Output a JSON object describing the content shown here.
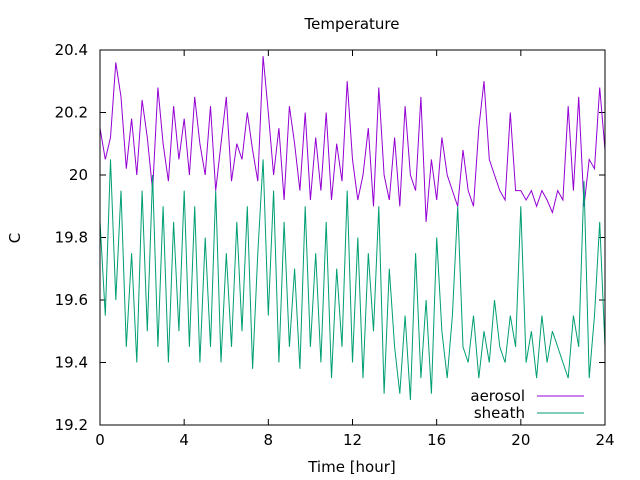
{
  "chart_data": {
    "type": "line",
    "title": "Temperature",
    "xlabel": "Time [hour]",
    "ylabel": "C",
    "xlim": [
      0,
      24
    ],
    "ylim": [
      19.2,
      20.4
    ],
    "x_ticks": [
      "0",
      "4",
      "8",
      "12",
      "16",
      "20",
      "24"
    ],
    "y_ticks": [
      "19.2",
      "19.4",
      "19.6",
      "19.8",
      "20",
      "20.2",
      "20.4"
    ],
    "grid": false,
    "legend_position": "bottom-right",
    "x": [
      0,
      0.25,
      0.5,
      0.75,
      1,
      1.25,
      1.5,
      1.75,
      2,
      2.25,
      2.5,
      2.75,
      3,
      3.25,
      3.5,
      3.75,
      4,
      4.25,
      4.5,
      4.75,
      5,
      5.25,
      5.5,
      5.75,
      6,
      6.25,
      6.5,
      6.75,
      7,
      7.25,
      7.5,
      7.75,
      8,
      8.25,
      8.5,
      8.75,
      9,
      9.25,
      9.5,
      9.75,
      10,
      10.25,
      10.5,
      10.75,
      11,
      11.25,
      11.5,
      11.75,
      12,
      12.25,
      12.5,
      12.75,
      13,
      13.25,
      13.5,
      13.75,
      14,
      14.25,
      14.5,
      14.75,
      15,
      15.25,
      15.5,
      15.75,
      16,
      16.25,
      16.5,
      16.75,
      17,
      17.25,
      17.5,
      17.75,
      18,
      18.25,
      18.5,
      18.75,
      19,
      19.25,
      19.5,
      19.75,
      20,
      20.25,
      20.5,
      20.75,
      21,
      21.25,
      21.5,
      21.75,
      22,
      22.25,
      22.5,
      22.75,
      23,
      23.25,
      23.5,
      23.75,
      24
    ],
    "series": [
      {
        "name": "aerosol",
        "color": "#9400d3",
        "values": [
          20.15,
          20.05,
          20.12,
          20.36,
          20.25,
          20.02,
          20.18,
          20.0,
          20.24,
          20.12,
          19.95,
          20.28,
          20.1,
          19.98,
          20.22,
          20.05,
          20.18,
          20.0,
          20.25,
          20.1,
          20.0,
          20.22,
          19.95,
          20.1,
          20.25,
          19.98,
          20.1,
          20.05,
          20.2,
          20.08,
          19.98,
          20.38,
          20.2,
          20.0,
          20.15,
          19.92,
          20.22,
          20.1,
          19.95,
          20.2,
          19.92,
          20.12,
          19.95,
          20.2,
          19.92,
          20.1,
          19.98,
          20.3,
          20.05,
          19.92,
          20.0,
          20.15,
          19.9,
          20.28,
          20.0,
          19.92,
          20.12,
          19.9,
          20.22,
          20.0,
          19.95,
          20.25,
          19.85,
          20.05,
          19.92,
          20.12,
          20.0,
          19.95,
          19.9,
          20.08,
          19.95,
          19.9,
          20.15,
          20.3,
          20.05,
          20.0,
          19.95,
          19.92,
          20.2,
          19.95,
          19.95,
          19.92,
          19.95,
          19.9,
          19.95,
          19.92,
          19.88,
          19.95,
          19.92,
          20.22,
          19.95,
          20.25,
          19.9,
          20.05,
          20.02,
          20.28,
          20.08
        ],
        "y": [
          20.15,
          20.05,
          20.12,
          20.36,
          20.25,
          20.02,
          20.18,
          20.0,
          20.24,
          20.12,
          19.95,
          20.28,
          20.1,
          19.98,
          20.22,
          20.05,
          20.18,
          20.0,
          20.25,
          20.1,
          20.0,
          20.22,
          19.95,
          20.1,
          20.25,
          19.98,
          20.1,
          20.05,
          20.2,
          20.08,
          19.98,
          20.38,
          20.2,
          20.0,
          20.15,
          19.92,
          20.22,
          20.1,
          19.95,
          20.2,
          19.92,
          20.12,
          19.95,
          20.2,
          19.92,
          20.1,
          19.98,
          20.3,
          20.05,
          19.92,
          20.0,
          20.15,
          19.9,
          20.28,
          20.0,
          19.92,
          20.12,
          19.9,
          20.22,
          20.0,
          19.95,
          20.25,
          19.85,
          20.05,
          19.92,
          20.12,
          20.0,
          19.95,
          19.9,
          20.08,
          19.95,
          19.9,
          20.15,
          20.3,
          20.05,
          20.0,
          19.95,
          19.92,
          20.2,
          19.95,
          19.95,
          19.92,
          19.95,
          19.9,
          19.95,
          19.92,
          19.88,
          19.95,
          19.92,
          20.22,
          19.95,
          20.25,
          19.9,
          20.05,
          20.02,
          20.28,
          20.08
        ]
      },
      {
        "name": "sheath",
        "color": "#009e73",
        "values": [
          19.85,
          19.55,
          20.05,
          19.6,
          19.95,
          19.45,
          19.75,
          19.4,
          19.95,
          19.5,
          20.0,
          19.45,
          19.9,
          19.4,
          19.85,
          19.5,
          19.95,
          19.45,
          19.9,
          19.4,
          19.8,
          19.45,
          19.95,
          19.4,
          19.75,
          19.45,
          19.85,
          19.5,
          19.9,
          19.38,
          19.75,
          20.05,
          19.55,
          19.95,
          19.4,
          19.85,
          19.45,
          19.7,
          19.38,
          19.9,
          19.45,
          19.75,
          19.4,
          19.85,
          19.35,
          19.7,
          19.45,
          19.95,
          19.4,
          19.8,
          19.35,
          19.75,
          19.5,
          19.9,
          19.3,
          19.7,
          19.45,
          19.3,
          19.55,
          19.28,
          19.75,
          19.35,
          19.6,
          19.3,
          19.8,
          19.5,
          19.35,
          19.55,
          19.9,
          19.45,
          19.4,
          19.55,
          19.35,
          19.5,
          19.4,
          19.6,
          19.45,
          19.4,
          19.55,
          19.45,
          19.9,
          19.4,
          19.5,
          19.35,
          19.55,
          19.4,
          19.5,
          19.45,
          19.4,
          19.35,
          19.55,
          19.45,
          19.98,
          19.35,
          19.55,
          19.85,
          19.45
        ],
        "y": [
          19.85,
          19.55,
          20.05,
          19.6,
          19.95,
          19.45,
          19.75,
          19.4,
          19.95,
          19.5,
          20.0,
          19.45,
          19.9,
          19.4,
          19.85,
          19.5,
          19.95,
          19.45,
          19.9,
          19.4,
          19.8,
          19.45,
          19.95,
          19.4,
          19.75,
          19.45,
          19.85,
          19.5,
          19.9,
          19.38,
          19.75,
          20.05,
          19.55,
          19.95,
          19.4,
          19.85,
          19.45,
          19.7,
          19.38,
          19.9,
          19.45,
          19.75,
          19.4,
          19.85,
          19.35,
          19.7,
          19.45,
          19.95,
          19.4,
          19.8,
          19.35,
          19.75,
          19.5,
          19.9,
          19.3,
          19.7,
          19.45,
          19.3,
          19.55,
          19.28,
          19.75,
          19.35,
          19.6,
          19.3,
          19.8,
          19.5,
          19.35,
          19.55,
          19.9,
          19.45,
          19.4,
          19.55,
          19.35,
          19.5,
          19.4,
          19.6,
          19.45,
          19.4,
          19.55,
          19.45,
          19.9,
          19.4,
          19.5,
          19.35,
          19.55,
          19.4,
          19.5,
          19.45,
          19.4,
          19.35,
          19.55,
          19.45,
          19.98,
          19.35,
          19.55,
          19.85,
          19.45
        ]
      }
    ]
  }
}
